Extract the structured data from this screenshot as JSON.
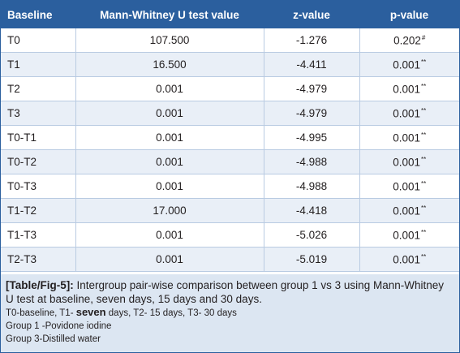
{
  "table": {
    "headers": [
      "Baseline",
      "Mann-Whitney U test value",
      "z-value",
      "p-value"
    ],
    "rows": [
      {
        "baseline": "T0",
        "u": "107.500",
        "z": "-1.276",
        "p": "0.202",
        "mark": "#"
      },
      {
        "baseline": "T1",
        "u": "16.500",
        "z": "-4.411",
        "p": "0.001",
        "mark": "**"
      },
      {
        "baseline": "T2",
        "u": "0.001",
        "z": "-4.979",
        "p": "0.001",
        "mark": "**"
      },
      {
        "baseline": "T3",
        "u": "0.001",
        "z": "-4.979",
        "p": "0.001",
        "mark": "**"
      },
      {
        "baseline": "T0-T1",
        "u": "0.001",
        "z": "-4.995",
        "p": "0.001",
        "mark": "**"
      },
      {
        "baseline": "T0-T2",
        "u": "0.001",
        "z": "-4.988",
        "p": "0.001",
        "mark": "**"
      },
      {
        "baseline": "T0-T3",
        "u": "0.001",
        "z": "-4.988",
        "p": "0.001",
        "mark": "**"
      },
      {
        "baseline": "T1-T2",
        "u": "17.000",
        "z": "-4.418",
        "p": "0.001",
        "mark": "**"
      },
      {
        "baseline": "T1-T3",
        "u": "0.001",
        "z": "-5.026",
        "p": "0.001",
        "mark": "**"
      },
      {
        "baseline": "T2-T3",
        "u": "0.001",
        "z": "-5.019",
        "p": "0.001",
        "mark": "**"
      }
    ]
  },
  "caption": {
    "label": "[Table/Fig-5]:",
    "text": " Intergroup pair-wise comparison between group 1 vs 3 using Mann-Whitney U test at baseline, seven days, 15 days and 30 days.",
    "note_prefix": "T0-baseline, T1- ",
    "note_bold": "seven",
    "note_suffix": " days, T2- 15 days, T3- 30 days",
    "group1": "Group 1 -Povidone iodine",
    "group3": "Group 3-Distilled water"
  },
  "colors": {
    "header_bg": "#2b5f9e",
    "row_alt_bg": "#e9eff7",
    "caption_bg": "#dce6f2"
  }
}
